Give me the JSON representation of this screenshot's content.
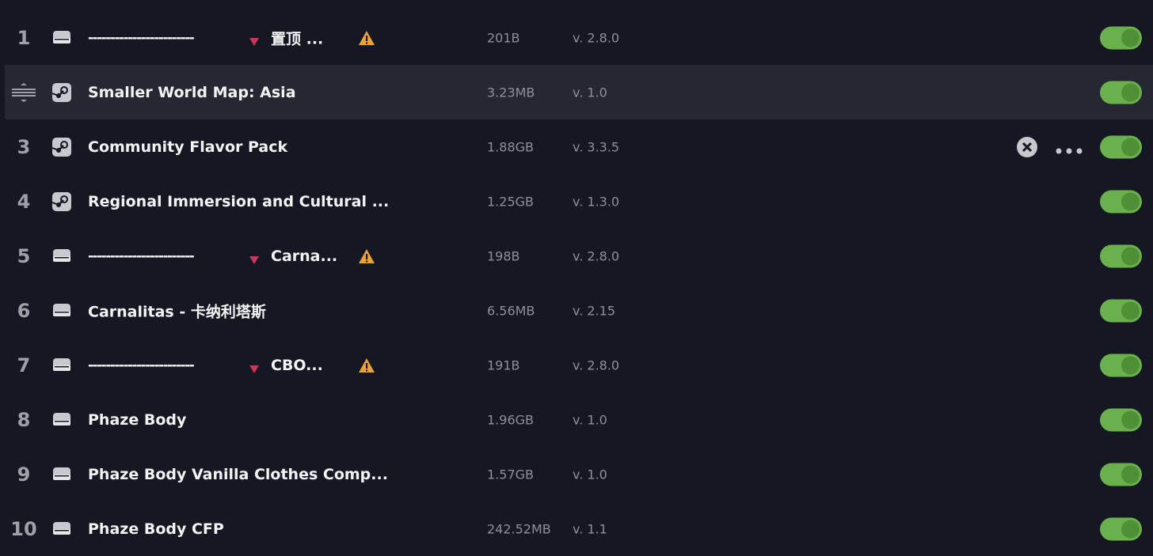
{
  "rows": [
    {
      "index": "1",
      "source": "local",
      "prefix": "------------------------",
      "name": "置顶 ...",
      "warning": true,
      "size": "201B",
      "version": "v. 2.8.0",
      "enabled": true
    },
    {
      "source": "steam",
      "hovered": true,
      "name": "Smaller World Map: Asia",
      "size": "3.23MB",
      "version": "v. 1.0",
      "enabled": true
    },
    {
      "index": "3",
      "source": "steam",
      "actions": true,
      "name": "Community Flavor Pack",
      "size": "1.88GB",
      "version": "v. 3.3.5",
      "enabled": true
    },
    {
      "index": "4",
      "source": "steam",
      "name": "Regional Immersion and Cultural ...",
      "size": "1.25GB",
      "version": "v. 1.3.0",
      "enabled": true
    },
    {
      "index": "5",
      "source": "local",
      "prefix": "------------------------",
      "name": "Carna...",
      "warning": true,
      "size": "198B",
      "version": "v. 2.8.0",
      "enabled": true
    },
    {
      "index": "6",
      "source": "local",
      "name": "Carnalitas - 卡纳利塔斯",
      "size": "6.56MB",
      "version": "v. 2.15",
      "enabled": true
    },
    {
      "index": "7",
      "source": "local",
      "prefix": "------------------------",
      "name": "CBO...",
      "warning": true,
      "size": "191B",
      "version": "v. 2.8.0",
      "enabled": true
    },
    {
      "index": "8",
      "source": "local",
      "name": "Phaze Body",
      "size": "1.96GB",
      "version": "v. 1.0",
      "enabled": true
    },
    {
      "index": "9",
      "source": "local",
      "name": "Phaze Body Vanilla Clothes Comp...",
      "size": "1.57GB",
      "version": "v. 1.0",
      "enabled": true
    },
    {
      "index": "10",
      "source": "local",
      "name": "Phaze Body CFP",
      "size": "242.52MB",
      "version": "v. 1.1",
      "enabled": true
    }
  ]
}
